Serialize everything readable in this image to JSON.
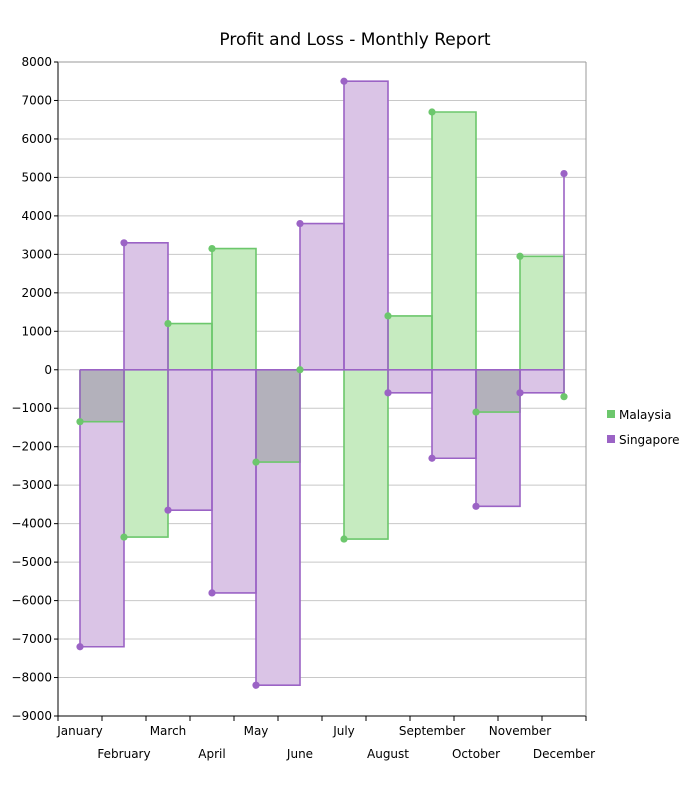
{
  "chart_data": {
    "type": "area",
    "title": "Profit and Loss - Monthly Report",
    "xlabel": "",
    "ylabel": "",
    "step": true,
    "categories": [
      "January",
      "February",
      "March",
      "April",
      "May",
      "June",
      "July",
      "August",
      "September",
      "October",
      "November",
      "December"
    ],
    "series": [
      {
        "name": "Malaysia",
        "color": "#6cc76c",
        "fill": "#c6ebc0",
        "values": [
          -1350,
          -4350,
          1200,
          3150,
          -2400,
          0,
          -4400,
          1400,
          6700,
          -1100,
          2950,
          -700
        ]
      },
      {
        "name": "Singapore",
        "color": "#9b63c5",
        "fill": "#dac4e6",
        "values": [
          -7200,
          3300,
          -3650,
          -5800,
          -8200,
          3800,
          7500,
          -600,
          -2300,
          -3550,
          -600,
          5100
        ]
      }
    ],
    "ylim": [
      -9000,
      8000
    ],
    "yticks": [
      -9000,
      -8000,
      -7000,
      -6000,
      -5000,
      -4000,
      -3000,
      -2000,
      -1000,
      0,
      1000,
      2000,
      3000,
      4000,
      5000,
      6000,
      7000,
      8000
    ],
    "ytick_labels": [
      "−9000",
      "−8000",
      "−7000",
      "−6000",
      "−5000",
      "−4000",
      "−3000",
      "−2000",
      "−1000",
      "0",
      "1000",
      "2000",
      "3000",
      "4000",
      "5000",
      "6000",
      "7000",
      "8000"
    ],
    "overlap_fill": "#b3b1bb",
    "grid": true,
    "legend_position": "right"
  }
}
